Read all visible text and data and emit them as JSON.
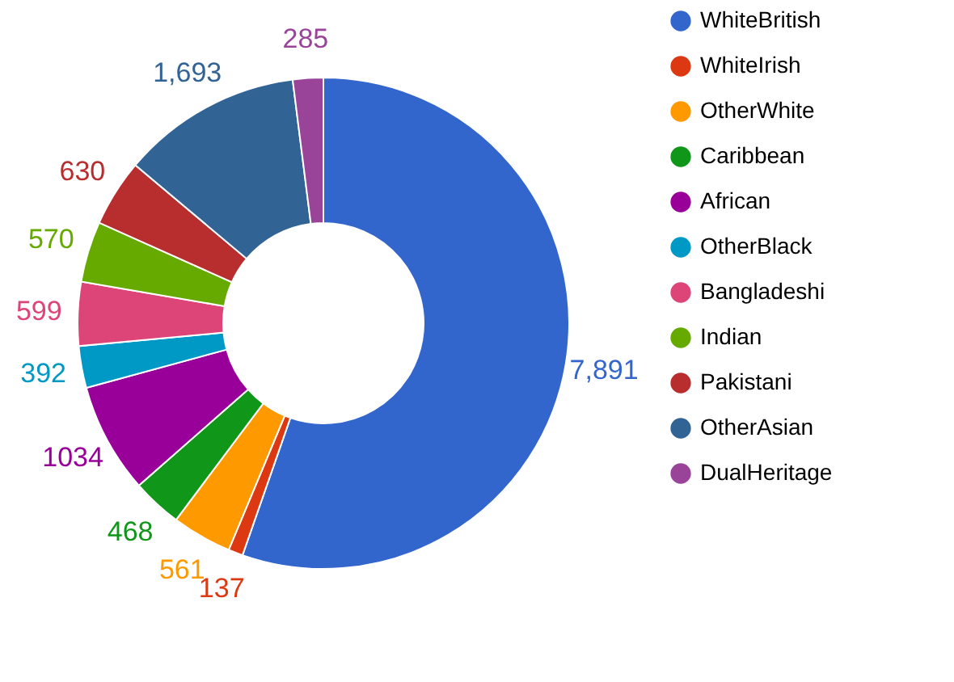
{
  "chart_data": {
    "type": "donut",
    "categories": [
      "WhiteBritish",
      "WhiteIrish",
      "OtherWhite",
      "Caribbean",
      "African",
      "OtherBlack",
      "Bangladeshi",
      "Indian",
      "Pakistani",
      "OtherAsian",
      "DualHeritage"
    ],
    "values": [
      7891,
      137,
      561,
      468,
      1034,
      392,
      599,
      570,
      630,
      1693,
      285
    ],
    "value_labels": [
      "7,891",
      "137",
      "561",
      "468",
      "1034",
      "392",
      "599",
      "570",
      "630",
      "1,693",
      "285"
    ],
    "colors": [
      "#3366cc",
      "#dc3912",
      "#ff9900",
      "#109618",
      "#990099",
      "#0099c6",
      "#dd4477",
      "#66aa00",
      "#b82e2e",
      "#316395",
      "#994499"
    ],
    "legend": "right"
  }
}
